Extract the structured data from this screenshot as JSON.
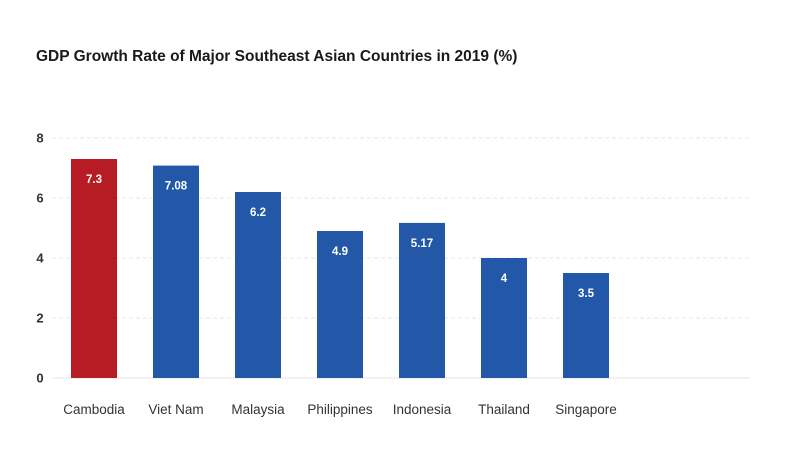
{
  "chart_data": {
    "type": "bar",
    "title": "GDP Growth Rate of Major Southeast Asian Countries in 2019 (%)",
    "xlabel": "",
    "ylabel": "",
    "categories": [
      "Cambodia",
      "Viet Nam",
      "Malaysia",
      "Philippines",
      "Indonesia",
      "Thailand",
      "Singapore"
    ],
    "values": [
      7.3,
      7.08,
      6.2,
      4.9,
      5.17,
      4,
      3.5
    ],
    "data_labels": [
      "7.3",
      "7.08",
      "6.2",
      "4.9",
      "5.17",
      "4",
      "3.5"
    ],
    "colors": [
      "#b71c25",
      "#2358a9",
      "#2358a9",
      "#2358a9",
      "#2358a9",
      "#2358a9",
      "#2358a9"
    ],
    "ylim": [
      0,
      8
    ],
    "yticks": [
      0,
      2,
      4,
      6,
      8
    ],
    "grid": true,
    "grid_style": "dashed",
    "legend": "none"
  }
}
